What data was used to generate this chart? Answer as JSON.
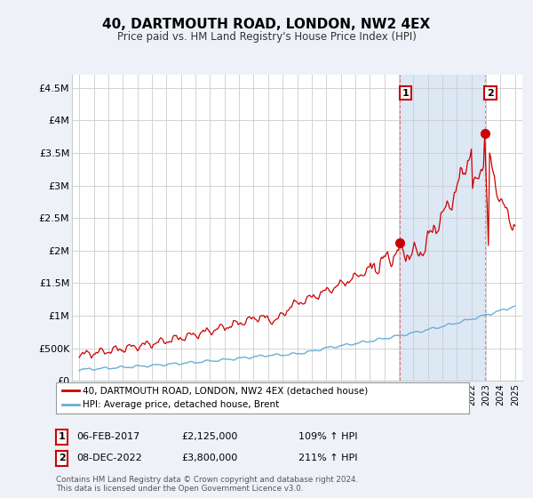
{
  "title": "40, DARTMOUTH ROAD, LONDON, NW2 4EX",
  "subtitle": "Price paid vs. HM Land Registry's House Price Index (HPI)",
  "ylabel_ticks": [
    "£0",
    "£500K",
    "£1M",
    "£1.5M",
    "£2M",
    "£2.5M",
    "£3M",
    "£3.5M",
    "£4M",
    "£4.5M"
  ],
  "ylabel_values": [
    0,
    500000,
    1000000,
    1500000,
    2000000,
    2500000,
    3000000,
    3500000,
    4000000,
    4500000
  ],
  "ylim": [
    0,
    4700000
  ],
  "xlim_start": 1994.5,
  "xlim_end": 2025.5,
  "sale1_x": 2017.08,
  "sale1_y": 2125000,
  "sale1_label": "1",
  "sale2_x": 2022.92,
  "sale2_y": 3800000,
  "sale2_label": "2",
  "hpi_line_color": "#6baed6",
  "price_line_color": "#cc0000",
  "sale_marker_color": "#cc0000",
  "annotation1_date": "06-FEB-2017",
  "annotation1_price": "£2,125,000",
  "annotation1_hpi": "109% ↑ HPI",
  "annotation2_date": "08-DEC-2022",
  "annotation2_price": "£3,800,000",
  "annotation2_hpi": "211% ↑ HPI",
  "legend_line1": "40, DARTMOUTH ROAD, LONDON, NW2 4EX (detached house)",
  "legend_line2": "HPI: Average price, detached house, Brent",
  "footer": "Contains HM Land Registry data © Crown copyright and database right 2024.\nThis data is licensed under the Open Government Licence v3.0.",
  "background_color": "#eef2f8",
  "plot_bg_color": "#ffffff",
  "shaded_bg_color": "#dde8f5",
  "grid_color": "#cccccc",
  "vline_color": "#cc0000",
  "vline_alpha": 0.45
}
